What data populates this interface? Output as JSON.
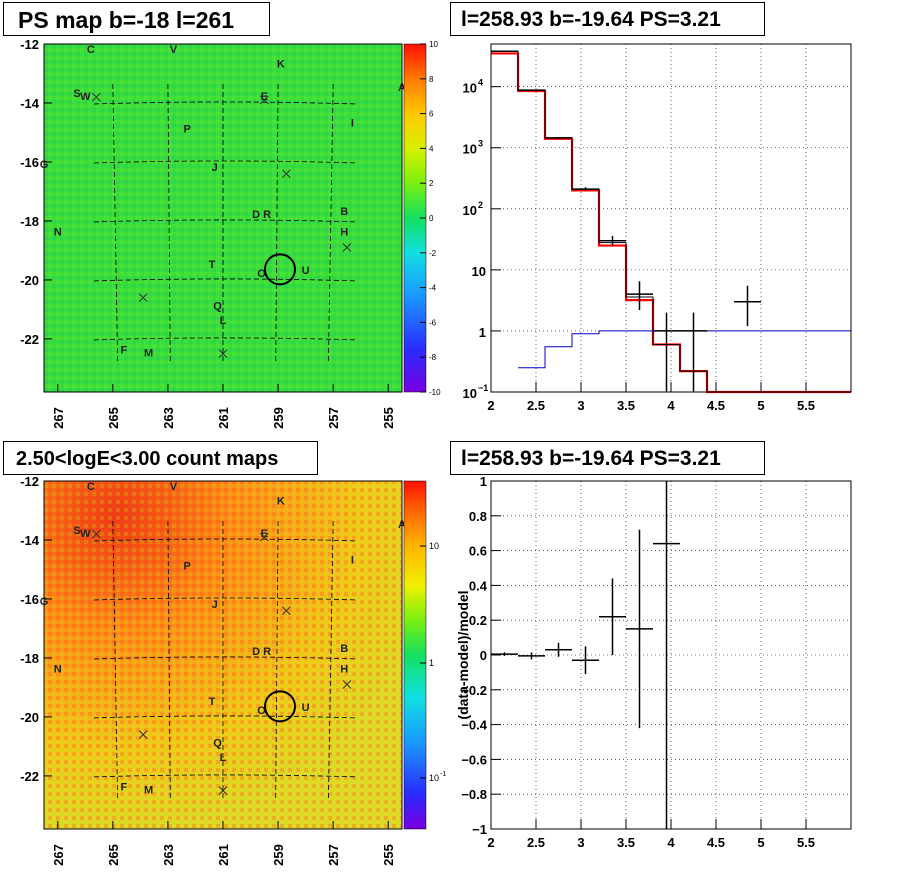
{
  "titles": {
    "ps_map": "PS map b=-18 l=261",
    "spectrum": "l=258.93 b=-19.64 PS=3.21",
    "count_map": "2.50<logE<3.00 count maps",
    "residual": "l=258.93 b=-19.64 PS=3.21"
  },
  "colors": {
    "model_line": "#ff0000",
    "background_line": "#0000cc",
    "data_marker": "#000000",
    "grid": "#000000"
  },
  "chart_data": [
    {
      "id": "ps_map",
      "type": "heatmap",
      "title": "PS map b=-18 l=261",
      "xlim": [
        267.5,
        254.5
      ],
      "ylim": [
        -23.8,
        -12
      ],
      "xticks": [
        "267",
        "265",
        "263",
        "261",
        "259",
        "257",
        "255"
      ],
      "yticks": [
        "-12",
        "-14",
        "-16",
        "-18",
        "-20",
        "-22"
      ],
      "colorbar": {
        "range": [
          -10,
          10
        ],
        "ticks": [
          "10",
          "8",
          "6",
          "4",
          "2",
          "0",
          "-2",
          "-4",
          "-6",
          "-8",
          "-10"
        ]
      },
      "source_labels": [
        {
          "label": "C",
          "l": 265.8,
          "b": -12.3
        },
        {
          "label": "V",
          "l": 262.8,
          "b": -12.3
        },
        {
          "label": "K",
          "l": 258.9,
          "b": -12.8
        },
        {
          "label": "A",
          "l": 254.5,
          "b": -13.6
        },
        {
          "label": "S",
          "l": 266.3,
          "b": -13.8
        },
        {
          "label": "W",
          "l": 266.0,
          "b": -13.9
        },
        {
          "label": "E",
          "l": 259.5,
          "b": -13.9
        },
        {
          "label": "I",
          "l": 256.3,
          "b": -14.8
        },
        {
          "label": "P",
          "l": 262.3,
          "b": -15.0
        },
        {
          "label": "G",
          "l": 267.5,
          "b": -16.2
        },
        {
          "label": "J",
          "l": 261.3,
          "b": -16.3
        },
        {
          "label": "B",
          "l": 256.6,
          "b": -17.8
        },
        {
          "label": "D",
          "l": 259.8,
          "b": -17.9
        },
        {
          "label": "R",
          "l": 259.4,
          "b": -17.9
        },
        {
          "label": "H",
          "l": 256.6,
          "b": -18.5
        },
        {
          "label": "N",
          "l": 267.0,
          "b": -18.5
        },
        {
          "label": "T",
          "l": 261.4,
          "b": -19.6
        },
        {
          "label": "O",
          "l": 259.6,
          "b": -19.9
        },
        {
          "label": "U",
          "l": 258.0,
          "b": -19.8
        },
        {
          "label": "Q",
          "l": 261.2,
          "b": -21.0
        },
        {
          "label": "L",
          "l": 261.0,
          "b": -21.5
        },
        {
          "label": "F",
          "l": 264.6,
          "b": -22.5
        },
        {
          "label": "M",
          "l": 263.7,
          "b": -22.6
        }
      ],
      "crosses": [
        {
          "l": 265.6,
          "b": -13.8
        },
        {
          "l": 259.5,
          "b": -13.9
        },
        {
          "l": 258.7,
          "b": -16.4
        },
        {
          "l": 256.5,
          "b": -18.9
        },
        {
          "l": 263.9,
          "b": -20.6
        },
        {
          "l": 261.0,
          "b": -22.5
        }
      ],
      "circle": {
        "l": 258.93,
        "b": -19.64
      }
    },
    {
      "id": "spectrum",
      "type": "line",
      "title": "l=258.93 b=-19.64 PS=3.21",
      "xlim": [
        2,
        6
      ],
      "ylim": [
        0.1,
        50000
      ],
      "yscale": "log",
      "grid": true,
      "xticks": [
        "2",
        "2.5",
        "3",
        "3.5",
        "4",
        "4.5",
        "5",
        "5.5"
      ],
      "yticks": [
        {
          "value": 0.1,
          "label": "10",
          "exp": "−1"
        },
        {
          "value": 1,
          "label": "1",
          "exp": ""
        },
        {
          "value": 10,
          "label": "10",
          "exp": ""
        },
        {
          "value": 100,
          "label": "10",
          "exp": "2"
        },
        {
          "value": 1000,
          "label": "10",
          "exp": "3"
        },
        {
          "value": 10000,
          "label": "10",
          "exp": "4"
        }
      ],
      "series": [
        {
          "style": "step-red",
          "edges": [
            2,
            2.3,
            2.6,
            2.9,
            3.2,
            3.5,
            3.8,
            4.1,
            4.4,
            6
          ],
          "values": [
            35000,
            8500,
            1400,
            200,
            25,
            3.2,
            0.6,
            0.22,
            0.1
          ]
        },
        {
          "style": "step-black",
          "edges": [
            2,
            2.3,
            2.6,
            2.9,
            3.2,
            3.5,
            3.8,
            4.1,
            4.4,
            6
          ],
          "values": [
            38000,
            8800,
            1450,
            210,
            28,
            3.6,
            0.6,
            0.22,
            0.1
          ]
        },
        {
          "style": "step-blue",
          "edges": [
            2.3,
            2.6,
            2.9,
            3.2,
            3.5,
            3.8,
            4.1,
            4.4,
            6
          ],
          "values": [
            0.25,
            0.55,
            0.9,
            1.0,
            1.0,
            1.0,
            1.0,
            1.0
          ]
        },
        {
          "style": "points",
          "points": [
            {
              "x": 2.15,
              "y": 38000,
              "xerr": 0.15,
              "ylo": 37000,
              "yhi": 39000
            },
            {
              "x": 2.45,
              "y": 8800,
              "xerr": 0.15,
              "ylo": 8600,
              "yhi": 9000
            },
            {
              "x": 2.75,
              "y": 1450,
              "xerr": 0.15,
              "ylo": 1400,
              "yhi": 1500
            },
            {
              "x": 3.05,
              "y": 210,
              "xerr": 0.15,
              "ylo": 195,
              "yhi": 225
            },
            {
              "x": 3.35,
              "y": 30,
              "xerr": 0.15,
              "ylo": 25,
              "yhi": 36
            },
            {
              "x": 3.65,
              "y": 4.0,
              "xerr": 0.15,
              "ylo": 2.2,
              "yhi": 6.5
            },
            {
              "x": 3.95,
              "y": 1.0,
              "xerr": 0.15,
              "ylo": 0.1,
              "yhi": 2.0
            },
            {
              "x": 4.25,
              "y": 1.0,
              "xerr": 0.15,
              "ylo": 0.1,
              "yhi": 2.0
            },
            {
              "x": 4.85,
              "y": 3.0,
              "xerr": 0.15,
              "ylo": 1.2,
              "yhi": 5.5
            }
          ]
        }
      ]
    },
    {
      "id": "count_map",
      "type": "heatmap",
      "title": "2.50<logE<3.00 count maps",
      "xlim": [
        267.5,
        254.5
      ],
      "ylim": [
        -23.8,
        -12
      ],
      "xticks": [
        "267",
        "265",
        "263",
        "261",
        "259",
        "257",
        "255"
      ],
      "yticks": [
        "-12",
        "-14",
        "-16",
        "-18",
        "-20",
        "-22"
      ],
      "colorbar": {
        "scale": "log",
        "ticks": [
          {
            "value": 10,
            "label": "10",
            "exp": ""
          },
          {
            "value": 1,
            "label": "1",
            "exp": ""
          },
          {
            "value": 0.1,
            "label": "10",
            "exp": "-1"
          }
        ]
      },
      "same_markers_as": "ps_map"
    },
    {
      "id": "residual",
      "type": "scatter",
      "title": "l=258.93 b=-19.64 PS=3.21",
      "ylabel": "(data-model)/model",
      "xlim": [
        2,
        6
      ],
      "ylim": [
        -1,
        1
      ],
      "grid": true,
      "xticks": [
        "2",
        "2.5",
        "3",
        "3.5",
        "4",
        "4.5",
        "5",
        "5.5"
      ],
      "yticks": [
        "1",
        "0.8",
        "0.6",
        "0.4",
        "0.2",
        "0",
        "−0.2",
        "−0.4",
        "−0.6",
        "−0.8",
        "−1"
      ],
      "points": [
        {
          "x": 2.15,
          "y": 0.005,
          "xerr": 0.15,
          "yerr": 0.01
        },
        {
          "x": 2.45,
          "y": -0.005,
          "xerr": 0.15,
          "yerr": 0.02
        },
        {
          "x": 2.75,
          "y": 0.03,
          "xerr": 0.15,
          "yerr": 0.04
        },
        {
          "x": 3.05,
          "y": -0.03,
          "xerr": 0.15,
          "yerr": 0.08
        },
        {
          "x": 3.35,
          "y": 0.22,
          "xerr": 0.15,
          "yerr": 0.22
        },
        {
          "x": 3.65,
          "y": 0.15,
          "xerr": 0.15,
          "yerr": 0.57
        },
        {
          "x": 3.95,
          "y": 0.64,
          "xerr": 0.15,
          "yerr": 1.7
        }
      ]
    }
  ]
}
